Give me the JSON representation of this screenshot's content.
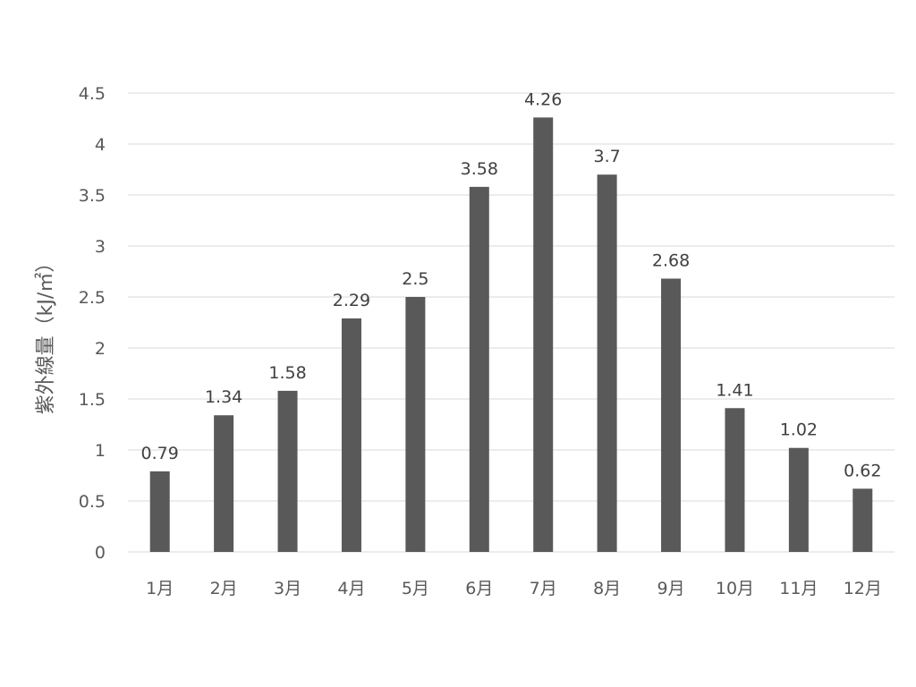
{
  "chart_data": {
    "type": "bar",
    "categories": [
      "1月",
      "2月",
      "3月",
      "4月",
      "5月",
      "6月",
      "7月",
      "8月",
      "9月",
      "10月",
      "11月",
      "12月"
    ],
    "series": [
      {
        "values": [
          0.79,
          1.34,
          1.58,
          2.29,
          2.5,
          3.58,
          4.26,
          3.7,
          2.68,
          1.41,
          1.02,
          0.62
        ],
        "color": "#595959"
      }
    ],
    "data_labels": [
      "0.79",
      "1.34",
      "1.58",
      "2.29",
      "2.5",
      "3.58",
      "4.26",
      "3.7",
      "2.68",
      "1.41",
      "1.02",
      "0.62"
    ],
    "ylabel": "紫外線量（kJ/㎡）",
    "xlabel": "",
    "ylim": [
      0,
      4.5
    ],
    "yticks": [
      "0",
      "0.5",
      "1",
      "1.5",
      "2",
      "2.5",
      "3",
      "3.5",
      "4",
      "4.5"
    ],
    "grid": true,
    "legend": "none",
    "gridline_color": "#d9d9d9",
    "label_color": "#595959"
  }
}
